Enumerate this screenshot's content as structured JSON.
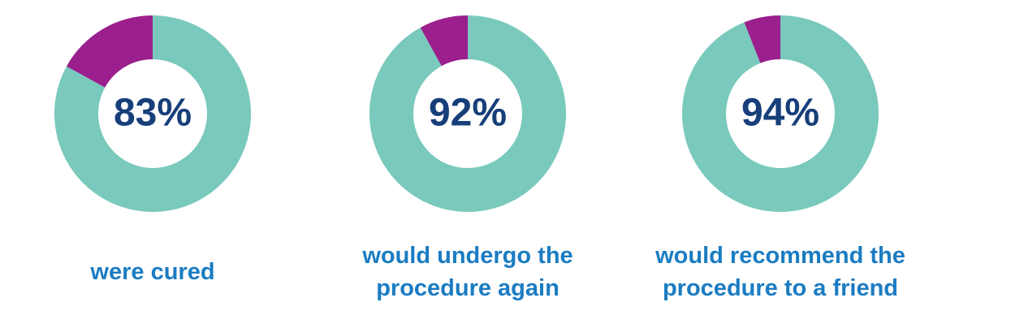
{
  "chart_data": [
    {
      "type": "pie",
      "values": [
        83,
        17
      ],
      "value_labels": [
        "83%",
        null
      ],
      "colors": [
        "#79c9bc",
        "#9b1f8d"
      ],
      "caption": "were cured"
    },
    {
      "type": "pie",
      "values": [
        92,
        8
      ],
      "value_labels": [
        "92%",
        null
      ],
      "colors": [
        "#79c9bc",
        "#9b1f8d"
      ],
      "caption": "would undergo the procedure again"
    },
    {
      "type": "pie",
      "values": [
        94,
        6
      ],
      "value_labels": [
        "94%",
        null
      ],
      "colors": [
        "#79c9bc",
        "#9b1f8d"
      ],
      "caption": "would recommend the procedure to a friend"
    }
  ]
}
